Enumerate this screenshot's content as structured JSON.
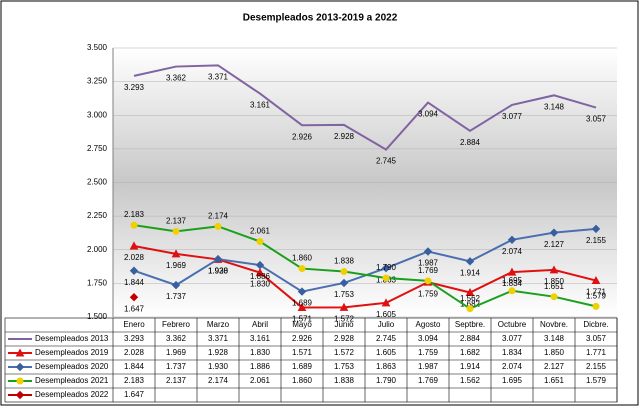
{
  "chart_data": {
    "type": "line",
    "title": "Desempleados 2013-2019 a 2022",
    "categories": [
      "Enero",
      "Febrero",
      "Marzo",
      "Abril",
      "Mayo",
      "Junio",
      "Julio",
      "Agosto",
      "Septbre.",
      "Octubre",
      "Novbre.",
      "Dicbre."
    ],
    "ylim": [
      1.5,
      3.5
    ],
    "yticks": [
      {
        "value": 1.5,
        "label": "1.500"
      },
      {
        "value": 1.75,
        "label": "1.750"
      },
      {
        "value": 2,
        "label": "2.000"
      },
      {
        "value": 2.25,
        "label": "2.250"
      },
      {
        "value": 2.5,
        "label": "2.500"
      },
      {
        "value": 2.75,
        "label": "2.750"
      },
      {
        "value": 3,
        "label": "3.000"
      },
      {
        "value": 3.25,
        "label": "3.250"
      },
      {
        "value": 3.5,
        "label": "3.500"
      }
    ],
    "series": [
      {
        "name": "Desempleados 2013",
        "color": "#8064a2",
        "marker": "none",
        "marker_color": "#8064a2",
        "values": [
          3.293,
          3.362,
          3.371,
          3.161,
          2.926,
          2.928,
          2.745,
          3.094,
          2.884,
          3.077,
          3.148,
          3.057
        ],
        "value_labels": [
          "3.293",
          "3.362",
          "3.371",
          "3.161",
          "2.926",
          "2.928",
          "2.745",
          "3.094",
          "2.884",
          "3.077",
          "3.148",
          "3.057"
        ]
      },
      {
        "name": "Desempleados 2019",
        "color": "#e01010",
        "marker": "triangle",
        "marker_color": "#e01010",
        "values": [
          2.028,
          1.969,
          1.928,
          1.83,
          1.571,
          1.572,
          1.605,
          1.759,
          1.682,
          1.834,
          1.85,
          1.771
        ],
        "value_labels": [
          "2.028",
          "1.969",
          "1.928",
          "1.830",
          "1.571",
          "1.572",
          "1.605",
          "1.759",
          "1.682",
          "1.834",
          "1.850",
          "1.771"
        ]
      },
      {
        "name": "Desempleados 2020",
        "color": "#4a6fb0",
        "marker": "diamond",
        "marker_color": "#3a5fa0",
        "values": [
          1.844,
          1.737,
          1.93,
          1.886,
          1.689,
          1.753,
          1.863,
          1.987,
          1.914,
          2.074,
          2.127,
          2.155
        ],
        "value_labels": [
          "1.844",
          "1.737",
          "1.930",
          "1.886",
          "1.689",
          "1.753",
          "1.863",
          "1.987",
          "1.914",
          "2.074",
          "2.127",
          "2.155"
        ]
      },
      {
        "name": "Desempleados 2021",
        "color": "#1aa01a",
        "marker": "circle",
        "marker_color": "#f0d000",
        "values": [
          2.183,
          2.137,
          2.174,
          2.061,
          1.86,
          1.838,
          1.79,
          1.769,
          1.562,
          1.695,
          1.651,
          1.579
        ],
        "value_labels": [
          "2.183",
          "2.137",
          "2.174",
          "2.061",
          "1.860",
          "1.838",
          "1.790",
          "1.769",
          "1.562",
          "1.695",
          "1.651",
          "1.579"
        ]
      },
      {
        "name": "Desempleados 2022",
        "color": "#c00000",
        "marker": "diamond",
        "marker_color": "#c00000",
        "values": [
          1.647,
          null,
          null,
          null,
          null,
          null,
          null,
          null,
          null,
          null,
          null,
          null
        ],
        "value_labels": [
          "1.647",
          null,
          null,
          null,
          null,
          null,
          null,
          null,
          null,
          null,
          null,
          null
        ]
      }
    ]
  }
}
